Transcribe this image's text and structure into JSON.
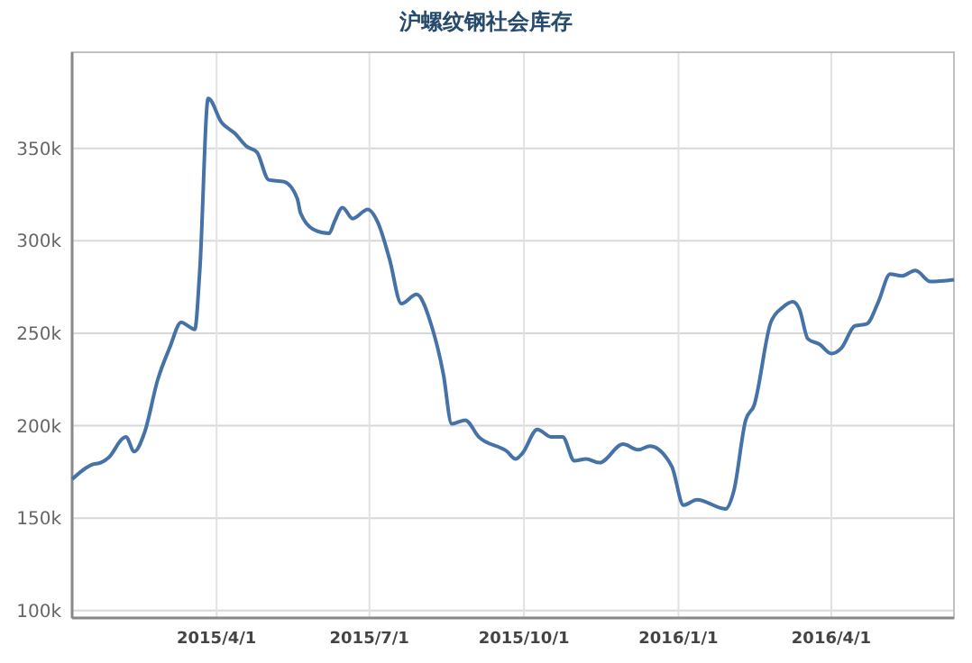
{
  "chart_data": {
    "type": "line",
    "title": "沪螺纹钢社会库存",
    "x": [
      "2015-01-05",
      "2015-01-13",
      "2015-01-17",
      "2015-01-22",
      "2015-01-27",
      "2015-02-04",
      "2015-02-06",
      "2015-02-11",
      "2015-02-17",
      "2015-02-25",
      "2015-03-04",
      "2015-03-11",
      "2015-03-15",
      "2015-03-19",
      "2015-03-22",
      "2015-03-27",
      "2015-04-04",
      "2015-04-12",
      "2015-04-19",
      "2015-04-25",
      "2015-05-02",
      "2015-05-11",
      "2015-05-19",
      "2015-05-21",
      "2015-05-29",
      "2015-06-07",
      "2015-06-10",
      "2015-06-15",
      "2015-06-21",
      "2015-06-30",
      "2015-07-06",
      "2015-07-13",
      "2015-07-20",
      "2015-07-29",
      "2015-08-07",
      "2015-08-14",
      "2015-08-19",
      "2015-08-27",
      "2015-09-04",
      "2015-09-21",
      "2015-09-26",
      "2015-09-30",
      "2015-10-09",
      "2015-10-17",
      "2015-10-24",
      "2015-10-31",
      "2015-11-07",
      "2015-11-15",
      "2015-11-29",
      "2015-12-08",
      "2015-12-15",
      "2015-12-28",
      "2016-01-04",
      "2016-01-12",
      "2016-01-29",
      "2016-02-03",
      "2016-02-10",
      "2016-02-15",
      "2016-02-25",
      "2016-03-03",
      "2016-03-09",
      "2016-03-13",
      "2016-03-18",
      "2016-03-25",
      "2016-04-01",
      "2016-04-07",
      "2016-04-15",
      "2016-04-22",
      "2016-04-29",
      "2016-05-06",
      "2016-05-13",
      "2016-05-21",
      "2016-05-30",
      "2016-06-13"
    ],
    "series": [
      {
        "color": "#4572a7",
        "values": [
          171000,
          177000,
          179000,
          180000,
          183000,
          193000,
          194000,
          186000,
          196000,
          225000,
          242000,
          256000,
          254000,
          252000,
          284000,
          377000,
          364000,
          358000,
          351000,
          348000,
          333000,
          332000,
          323000,
          315000,
          306000,
          304000,
          310000,
          318000,
          312000,
          317000,
          310000,
          290000,
          266000,
          271000,
          254000,
          228000,
          201000,
          203000,
          194000,
          186000,
          182000,
          185000,
          198000,
          194000,
          194000,
          181000,
          182000,
          180000,
          190000,
          187000,
          189000,
          178000,
          157000,
          160000,
          155000,
          165000,
          203000,
          211000,
          256000,
          264000,
          267000,
          263000,
          247000,
          244000,
          239000,
          242000,
          254000,
          255000,
          267000,
          282000,
          281000,
          284000,
          278000,
          279000
        ]
      }
    ],
    "xlim": [
      "2015-01-05",
      "2016-06-13"
    ],
    "xticks": [
      {
        "value": "2015-04-01",
        "label": "2015/4/1"
      },
      {
        "value": "2015-07-01",
        "label": "2015/7/1"
      },
      {
        "value": "2015-10-01",
        "label": "2015/10/1"
      },
      {
        "value": "2016-01-01",
        "label": "2016/1/1"
      },
      {
        "value": "2016-04-01",
        "label": "2016/4/1"
      }
    ],
    "ylim": [
      96000,
      402000
    ],
    "yticks": [
      {
        "value": 100000,
        "label": "100k"
      },
      {
        "value": 150000,
        "label": "150k"
      },
      {
        "value": 200000,
        "label": "200k"
      },
      {
        "value": 250000,
        "label": "250k"
      },
      {
        "value": 300000,
        "label": "300k"
      },
      {
        "value": 350000,
        "label": "350k"
      }
    ],
    "grid": true,
    "marker": "none",
    "line_style": "solid"
  }
}
